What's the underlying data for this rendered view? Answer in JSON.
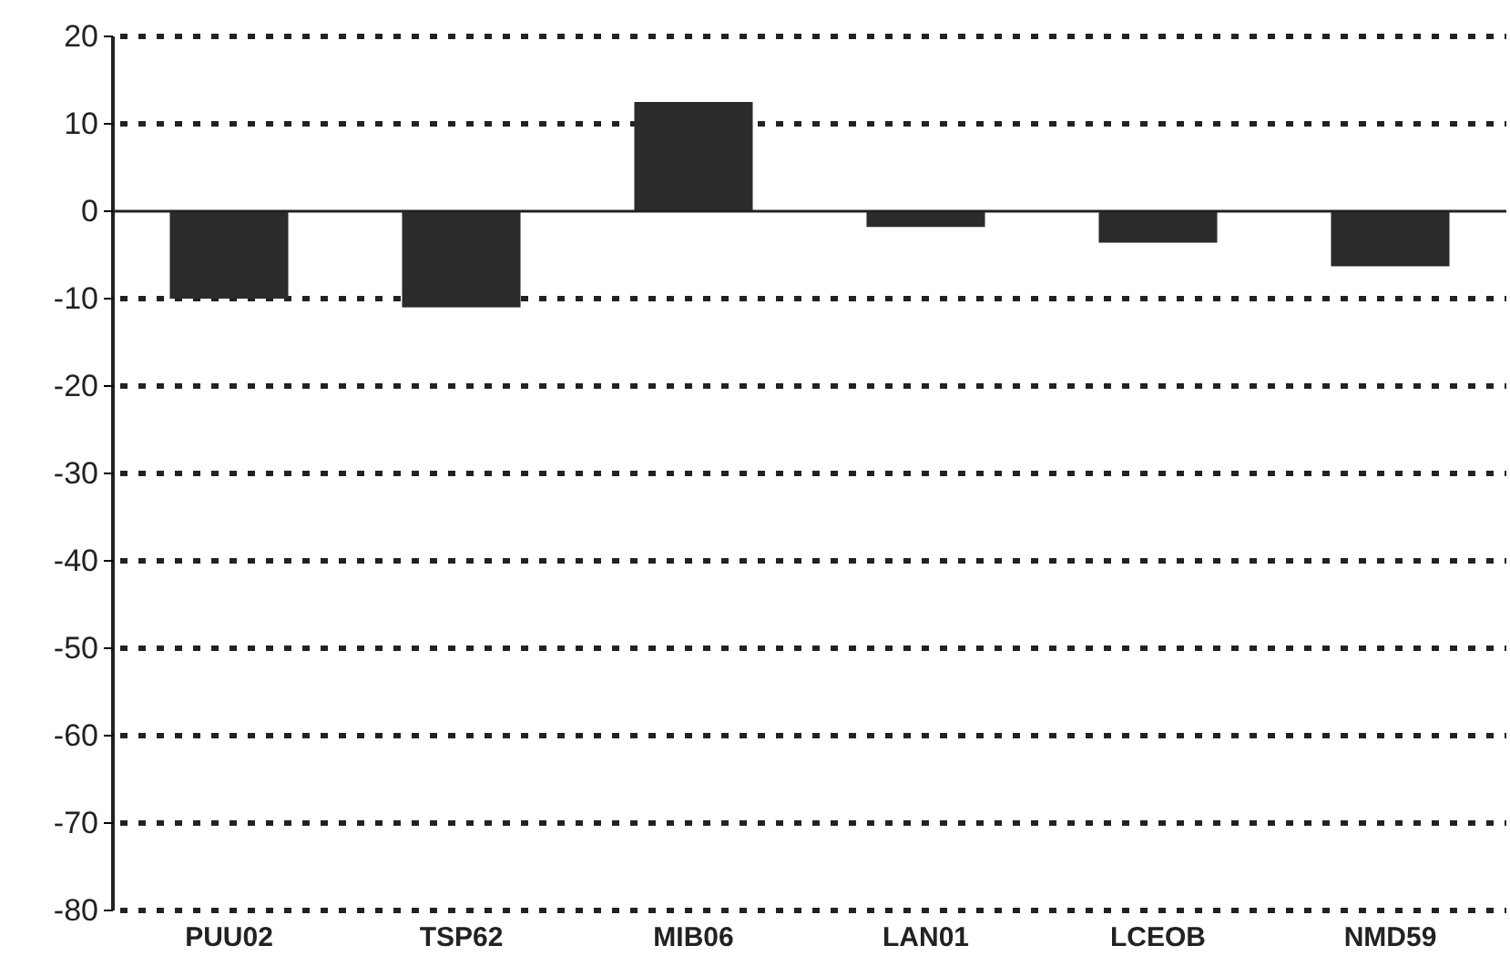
{
  "chart_data": {
    "type": "bar",
    "categories": [
      "PUU02",
      "TSP62",
      "MIB06",
      "LAN01",
      "LCEOB",
      "NMD59"
    ],
    "values": [
      -10,
      -11,
      12.5,
      -1.8,
      -3.6,
      -6.3
    ],
    "color": "#2b2b2b",
    "ylim": [
      -80,
      20
    ],
    "yticks": [
      -80,
      -70,
      -60,
      -50,
      -40,
      -30,
      -20,
      -10,
      0,
      10,
      20
    ],
    "grid": "y"
  }
}
